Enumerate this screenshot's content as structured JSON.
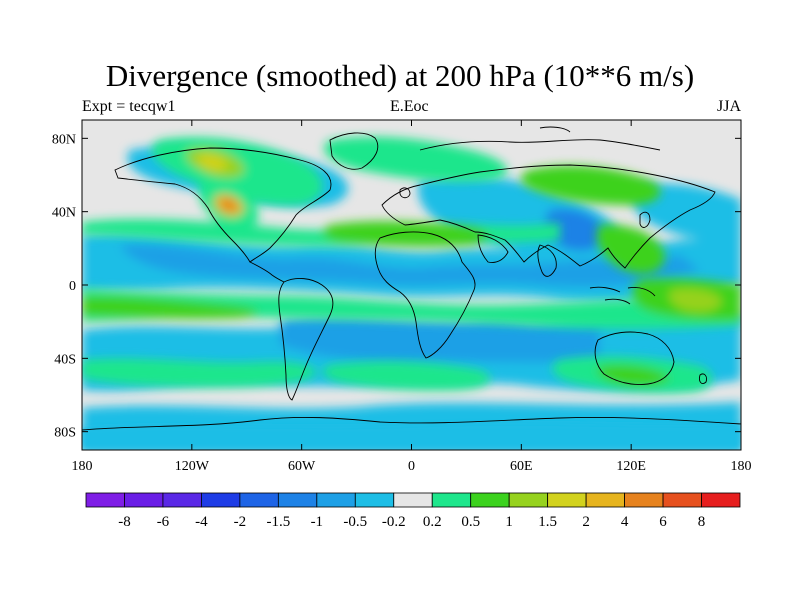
{
  "title": "Divergence (smoothed) at 200 hPa (10**6 m/s)",
  "left_string": "Expt = tecqw1",
  "center_string": "E.Eoc",
  "right_string": "JJA",
  "map": {
    "projection": "cylindrical-equidistant",
    "lon_range": [
      -180,
      180
    ],
    "lat_range": [
      -90,
      90
    ],
    "lat_ticks": [
      {
        "lat": 80,
        "label": "80N"
      },
      {
        "lat": 40,
        "label": "40N"
      },
      {
        "lat": 0,
        "label": "0"
      },
      {
        "lat": -40,
        "label": "40S"
      },
      {
        "lat": -80,
        "label": "80S"
      }
    ],
    "lon_ticks": [
      {
        "lon": -180,
        "label": "180"
      },
      {
        "lon": -120,
        "label": "120W"
      },
      {
        "lon": -60,
        "label": "60W"
      },
      {
        "lon": 0,
        "label": "0"
      },
      {
        "lon": 60,
        "label": "60E"
      },
      {
        "lon": 120,
        "label": "120E"
      },
      {
        "lon": 180,
        "label": "180"
      }
    ],
    "background_color": "#e6e6e6",
    "coast_color": "#000000"
  },
  "colorbar": {
    "colors": [
      "#7f1ee6",
      "#6a1ee6",
      "#5a28e6",
      "#1e3ce6",
      "#1e64e6",
      "#1e82e6",
      "#1ea0e6",
      "#1ebee6",
      "#e6e6e6",
      "#1ee68c",
      "#3cd21e",
      "#96d21e",
      "#d2d21e",
      "#e6b41e",
      "#e6821e",
      "#e6501e",
      "#e61e1e"
    ],
    "labels": [
      "-8",
      "-6",
      "-4",
      "-2",
      "-1.5",
      "-1",
      "-0.5",
      "-0.2",
      "0.2",
      "0.5",
      "1",
      "1.5",
      "2",
      "4",
      "6",
      "8"
    ]
  },
  "fields": {
    "pos_strong": "#1ee68c",
    "pos_mid": "#3cd21e",
    "pos_high": "#96d21e",
    "pos_peak": "#d2d21e",
    "pos_max": "#e6b41e",
    "pos_extreme": "#e6821e",
    "neg_weak": "#1ebee6",
    "neg_mid": "#1ea0e6",
    "neg_strong": "#1e82e6",
    "neg_deep": "#1e64e6"
  }
}
